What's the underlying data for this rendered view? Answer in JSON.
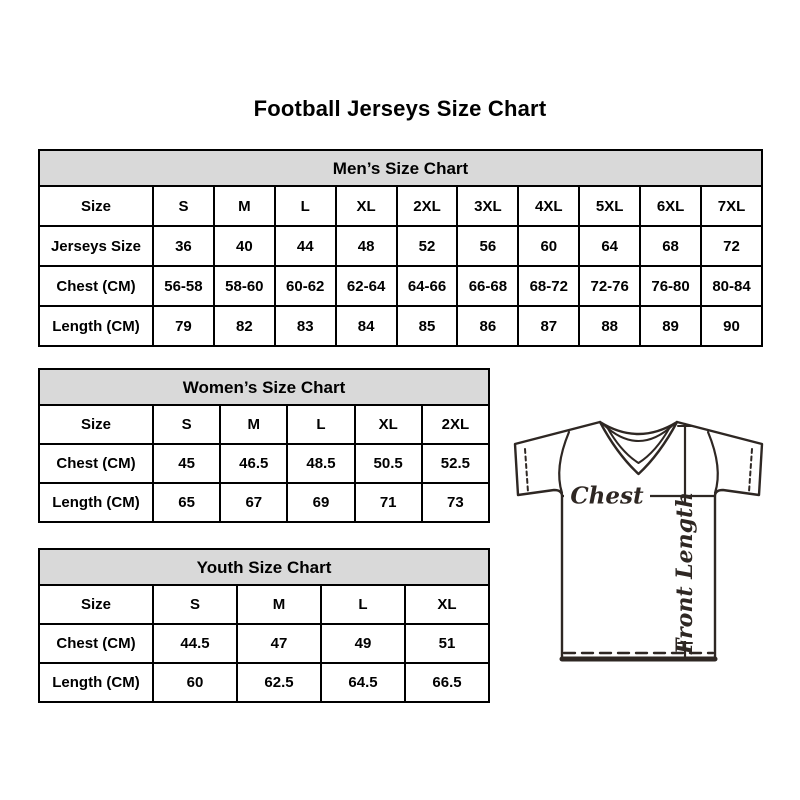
{
  "page": {
    "title": "Football Jerseys Size Chart"
  },
  "tables": {
    "men": {
      "header": "Men’s Size Chart",
      "rows": [
        [
          "Size",
          "S",
          "M",
          "L",
          "XL",
          "2XL",
          "3XL",
          "4XL",
          "5XL",
          "6XL",
          "7XL"
        ],
        [
          "Jerseys Size",
          "36",
          "40",
          "44",
          "48",
          "52",
          "56",
          "60",
          "64",
          "68",
          "72"
        ],
        [
          "Chest (CM)",
          "56-58",
          "58-60",
          "60-62",
          "62-64",
          "64-66",
          "66-68",
          "68-72",
          "72-76",
          "76-80",
          "80-84"
        ],
        [
          "Length (CM)",
          "79",
          "82",
          "83",
          "84",
          "85",
          "86",
          "87",
          "88",
          "89",
          "90"
        ]
      ]
    },
    "women": {
      "header": "Women’s Size Chart",
      "rows": [
        [
          "Size",
          "S",
          "M",
          "L",
          "XL",
          "2XL"
        ],
        [
          "Chest (CM)",
          "45",
          "46.5",
          "48.5",
          "50.5",
          "52.5"
        ],
        [
          "Length (CM)",
          "65",
          "67",
          "69",
          "71",
          "73"
        ]
      ]
    },
    "youth": {
      "header": "Youth Size Chart",
      "rows": [
        [
          "Size",
          "S",
          "M",
          "L",
          "XL"
        ],
        [
          "Chest (CM)",
          "44.5",
          "47",
          "49",
          "51"
        ],
        [
          "Length (CM)",
          "60",
          "62.5",
          "64.5",
          "66.5"
        ]
      ]
    }
  },
  "diagram": {
    "chest_label": "Chest",
    "front_length_label": "Front Length"
  },
  "colors": {
    "header_bg": "#d9d9d9",
    "table_border": "#000000",
    "diagram_line": "#2e2723"
  }
}
